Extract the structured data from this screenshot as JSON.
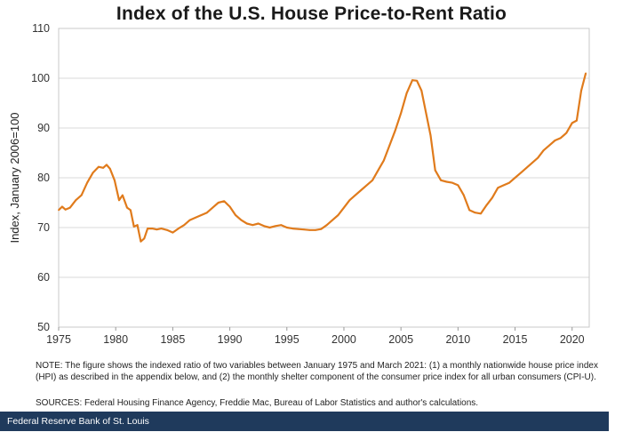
{
  "footer": {
    "text": "Federal Reserve Bank of St. Louis"
  },
  "notes": {
    "note": "NOTE: The figure shows the indexed ratio of two variables between January 1975 and March 2021: (1) a monthly nationwide house price index (HPI) as described in the appendix below, and (2) the monthly shelter component of the consumer price index for all urban consumers (CPI-U).",
    "sources": "SOURCES: Federal Housing Finance Agency, Freddie Mac, Bureau of Labor Statistics and author's calculations."
  },
  "colors": {
    "line": "#e07b1c",
    "grid": "#d9d9d9",
    "footer_bg": "#1f3a5c"
  },
  "chart_data": {
    "type": "line",
    "title": "Index of the U.S. House Price-to-Rent Ratio",
    "xlabel": "",
    "ylabel": "Index, January 2006=100",
    "xlim": [
      1975,
      2021.5
    ],
    "ylim": [
      50,
      110
    ],
    "x_ticks": [
      1975,
      1980,
      1985,
      1990,
      1995,
      2000,
      2005,
      2010,
      2015,
      2020
    ],
    "y_ticks": [
      50,
      60,
      70,
      80,
      90,
      100,
      110
    ],
    "grid": "horizontal",
    "legend": "none",
    "series": [
      {
        "x": [
          1975.0,
          1975.3,
          1975.6,
          1976.0,
          1976.5,
          1977.0,
          1977.5,
          1978.0,
          1978.5,
          1978.9,
          1979.2,
          1979.5,
          1979.9,
          1980.3,
          1980.6,
          1981.0,
          1981.3,
          1981.6,
          1981.9,
          1982.2,
          1982.5,
          1982.8,
          1983.2,
          1983.6,
          1984.0,
          1984.5,
          1985.0,
          1985.5,
          1986.0,
          1986.5,
          1987.0,
          1987.5,
          1988.0,
          1988.5,
          1989.0,
          1989.5,
          1990.0,
          1990.5,
          1991.0,
          1991.5,
          1992.0,
          1992.5,
          1993.0,
          1993.5,
          1994.0,
          1994.5,
          1995.0,
          1995.5,
          1996.0,
          1996.5,
          1997.0,
          1997.5,
          1998.0,
          1998.5,
          1999.0,
          1999.5,
          2000.0,
          2000.5,
          2001.0,
          2001.5,
          2002.0,
          2002.5,
          2003.0,
          2003.5,
          2004.0,
          2004.5,
          2005.0,
          2005.5,
          2006.0,
          2006.4,
          2006.8,
          2007.2,
          2007.6,
          2008.0,
          2008.5,
          2009.0,
          2009.5,
          2010.0,
          2010.5,
          2011.0,
          2011.5,
          2012.0,
          2012.5,
          2013.0,
          2013.5,
          2014.0,
          2014.5,
          2015.0,
          2015.5,
          2016.0,
          2016.5,
          2017.0,
          2017.5,
          2018.0,
          2018.5,
          2019.0,
          2019.5,
          2020.0,
          2020.4,
          2020.8,
          2021.2
        ],
        "y": [
          73.5,
          74.2,
          73.6,
          74.0,
          75.5,
          76.5,
          79.0,
          81.0,
          82.2,
          82.0,
          82.6,
          81.8,
          79.5,
          75.5,
          76.5,
          74.0,
          73.5,
          70.2,
          70.5,
          67.2,
          67.8,
          69.8,
          69.8,
          69.6,
          69.8,
          69.5,
          69.0,
          69.8,
          70.5,
          71.5,
          72.0,
          72.5,
          73.0,
          74.0,
          75.0,
          75.3,
          74.2,
          72.5,
          71.5,
          70.8,
          70.5,
          70.8,
          70.3,
          70.0,
          70.3,
          70.5,
          70.0,
          69.8,
          69.7,
          69.6,
          69.5,
          69.5,
          69.7,
          70.5,
          71.5,
          72.5,
          74.0,
          75.5,
          76.5,
          77.5,
          78.5,
          79.5,
          81.5,
          83.5,
          86.5,
          89.5,
          93.0,
          97.0,
          99.6,
          99.5,
          97.5,
          93.0,
          88.5,
          81.5,
          79.5,
          79.2,
          79.0,
          78.5,
          76.5,
          73.5,
          73.0,
          72.8,
          74.5,
          76.0,
          78.0,
          78.5,
          79.0,
          80.0,
          81.0,
          82.0,
          83.0,
          84.0,
          85.5,
          86.5,
          87.5,
          88.0,
          89.0,
          91.0,
          91.5,
          97.5,
          101.0
        ]
      }
    ]
  }
}
